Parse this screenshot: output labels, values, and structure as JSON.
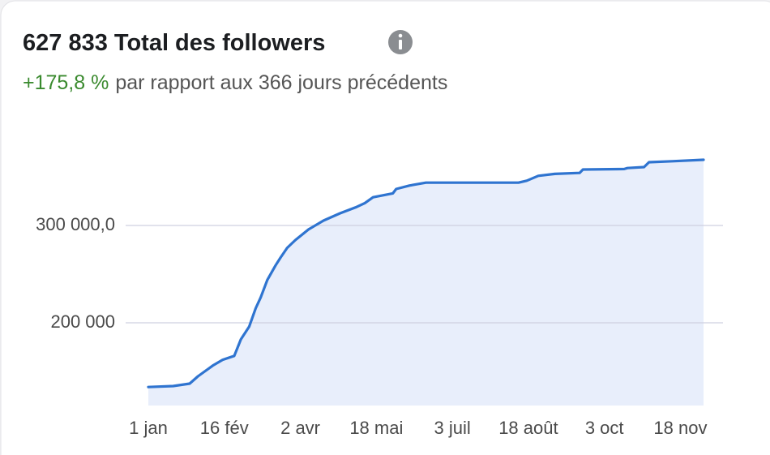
{
  "chart_data": {
    "type": "area",
    "title": "627 833 Total des followers",
    "change": "+175,8 %",
    "subtitle": "par rapport aux 366 jours précédents",
    "x": [
      0,
      15,
      25,
      30,
      39,
      45,
      52,
      56,
      61,
      65,
      68,
      72,
      77,
      80,
      84,
      89,
      97,
      106,
      116,
      126,
      131,
      136,
      148,
      150,
      158,
      168,
      224,
      229,
      236,
      246,
      261,
      263,
      288,
      290,
      300,
      303,
      317,
      336
    ],
    "series": [
      {
        "name": "Followers",
        "color": "#2f74d0",
        "values": [
          134000,
          135000,
          137500,
          145000,
          156000,
          162000,
          166000,
          183000,
          196000,
          215000,
          226000,
          244000,
          259000,
          267000,
          277000,
          285000,
          296000,
          305000,
          312500,
          319000,
          323000,
          329000,
          333000,
          337500,
          341000,
          344000,
          344000,
          346000,
          351000,
          353000,
          354000,
          357500,
          358000,
          359000,
          360000,
          365000,
          366000,
          367500
        ]
      }
    ],
    "fill_color": "#e8eefb",
    "xlim": [
      0,
      336
    ],
    "xticks": [
      {
        "value": 0,
        "label": "1 jan"
      },
      {
        "value": 46,
        "label": "16 fév"
      },
      {
        "value": 92,
        "label": "2 avr"
      },
      {
        "value": 138,
        "label": "18 mai"
      },
      {
        "value": 184,
        "label": "3 juil"
      },
      {
        "value": 230,
        "label": "18 août"
      },
      {
        "value": 276,
        "label": "3 oct"
      },
      {
        "value": 322,
        "label": "18 nov"
      }
    ],
    "ylim": [
      115000,
      405000
    ],
    "yticks": [
      {
        "value": 200000,
        "label": "200 000"
      },
      {
        "value": 300000,
        "label": "300 000,0"
      }
    ],
    "grid": true
  }
}
